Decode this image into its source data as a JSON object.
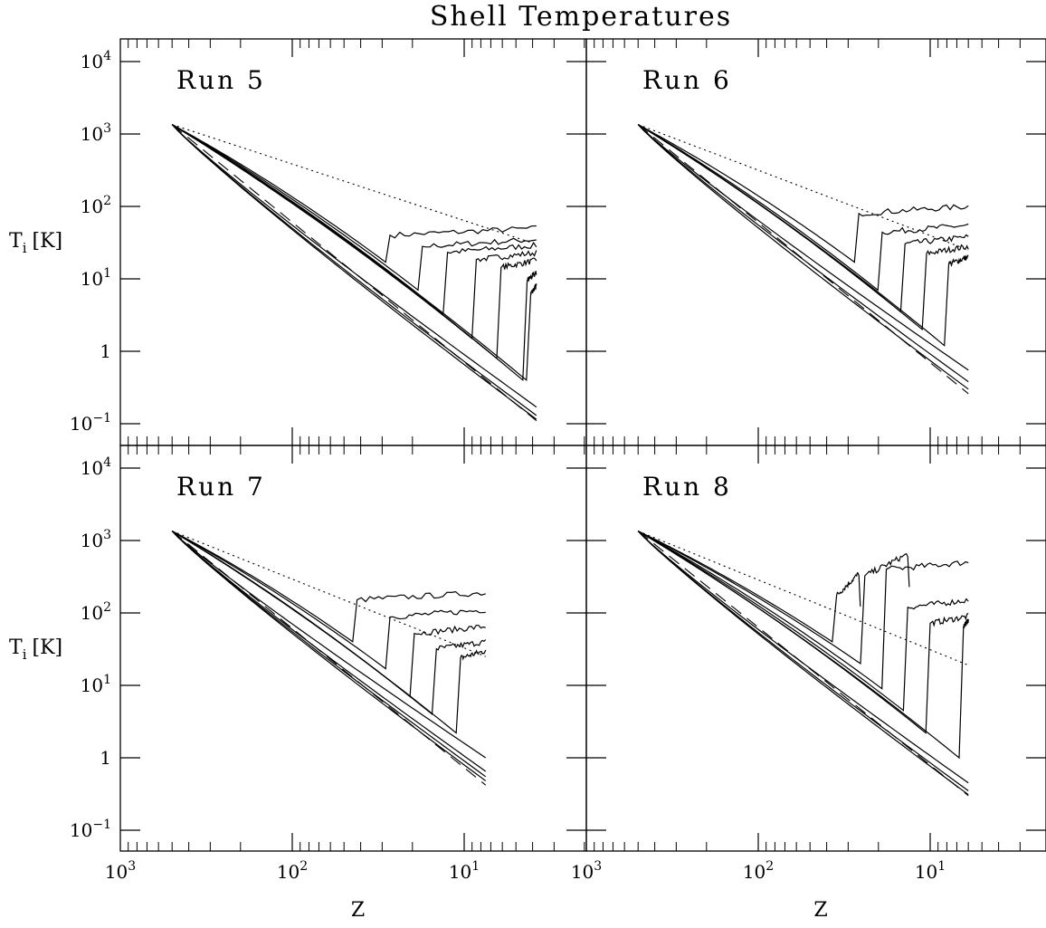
{
  "chart_data": {
    "type": "line",
    "title": "Shell Temperatures",
    "xlabel": "Z",
    "ylabel": "T",
    "ylabel_sub": "i",
    "ylabel_unit": "[K]",
    "x_scale": "log-reversed",
    "y_scale": "log",
    "xlim": [
      1000,
      2.5
    ],
    "ylim": [
      0.05,
      20000
    ],
    "x_ticks": [
      {
        "value": 1000,
        "base": "10",
        "exp": "3"
      },
      {
        "value": 100,
        "base": "10",
        "exp": "2"
      },
      {
        "value": 10,
        "base": "10",
        "exp": "1"
      }
    ],
    "y_ticks": [
      {
        "value": 10000,
        "base": "10",
        "exp": "4"
      },
      {
        "value": 1000,
        "base": "10",
        "exp": "3"
      },
      {
        "value": 100,
        "base": "10",
        "exp": "2"
      },
      {
        "value": 10,
        "base": "10",
        "exp": "1"
      },
      {
        "value": 1,
        "base": "1",
        "exp": ""
      },
      {
        "value": 0.1,
        "base": "10",
        "exp": "−1"
      }
    ],
    "panels": [
      {
        "label": "Run 5",
        "zmin": 3.8,
        "reference_dashed": [
          [
            500,
            1350
          ],
          [
            3.8,
            0.11
          ]
        ],
        "reference_dotted": [
          [
            500,
            1350
          ],
          [
            3.8,
            30
          ]
        ],
        "shells": [
          {
            "drop_z": 27,
            "min_T": 17,
            "end_T": 50
          },
          {
            "drop_z": 17.5,
            "min_T": 7,
            "end_T": 35
          },
          {
            "drop_z": 12.5,
            "min_T": 3.3,
            "end_T": 29
          },
          {
            "drop_z": 8.5,
            "min_T": 1.5,
            "end_T": 23
          },
          {
            "drop_z": 6.1,
            "min_T": 0.8,
            "end_T": 18
          },
          {
            "drop_z": 4.3,
            "min_T": 0.4,
            "end_T": 12
          },
          {
            "drop_z": 4.1,
            "min_T": 0.4,
            "end_T": 8
          },
          {
            "drop_z": null,
            "min_T": null,
            "end_T": 0.17
          },
          {
            "drop_z": null,
            "min_T": null,
            "end_T": 0.13
          },
          {
            "drop_z": null,
            "min_T": null,
            "end_T": 0.115
          }
        ]
      },
      {
        "label": "Run 6",
        "zmin": 6,
        "reference_dashed": [
          [
            500,
            1350
          ],
          [
            6,
            0.26
          ]
        ],
        "reference_dotted": [
          [
            500,
            1350
          ],
          [
            6,
            25
          ]
        ],
        "shells": [
          {
            "drop_z": 26,
            "min_T": 17,
            "end_T": 100
          },
          {
            "drop_z": 19,
            "min_T": 7,
            "end_T": 55
          },
          {
            "drop_z": 14,
            "min_T": 3.5,
            "end_T": 38
          },
          {
            "drop_z": 10.5,
            "min_T": 2,
            "end_T": 28
          },
          {
            "drop_z": 7.8,
            "min_T": 1.2,
            "end_T": 20
          },
          {
            "drop_z": null,
            "min_T": null,
            "end_T": 0.55
          },
          {
            "drop_z": null,
            "min_T": null,
            "end_T": 0.38
          },
          {
            "drop_z": null,
            "min_T": null,
            "end_T": 0.3
          }
        ]
      },
      {
        "label": "Run 7",
        "zmin": 7.5,
        "reference_dashed": [
          [
            500,
            1350
          ],
          [
            7.5,
            0.42
          ]
        ],
        "reference_dotted": [
          [
            500,
            1350
          ],
          [
            7.5,
            25
          ]
        ],
        "shells": [
          {
            "drop_z": 42,
            "min_T": 40,
            "end_T": 190
          },
          {
            "drop_z": 27,
            "min_T": 17,
            "end_T": 110
          },
          {
            "drop_z": 19.5,
            "min_T": 7,
            "end_T": 65
          },
          {
            "drop_z": 14.5,
            "min_T": 4,
            "end_T": 40
          },
          {
            "drop_z": 10.5,
            "min_T": 2.2,
            "end_T": 30
          },
          {
            "drop_z": null,
            "min_T": null,
            "end_T": 1.0
          },
          {
            "drop_z": null,
            "min_T": null,
            "end_T": 0.65
          },
          {
            "drop_z": null,
            "min_T": null,
            "end_T": 0.55
          },
          {
            "drop_z": null,
            "min_T": null,
            "end_T": 0.48
          }
        ]
      },
      {
        "label": "Run 8",
        "zmin": 6,
        "reference_dashed": [
          [
            500,
            1350
          ],
          [
            6,
            0.3
          ]
        ],
        "reference_dotted": [
          [
            500,
            1350
          ],
          [
            6,
            19
          ]
        ],
        "shells": [
          {
            "drop_z": 35,
            "min_T": 40,
            "end_T": 350,
            "peak_z": 26
          },
          {
            "drop_z": 24,
            "min_T": 20,
            "end_T": 650,
            "peak_z": 13.5
          },
          {
            "drop_z": 18,
            "min_T": 9,
            "end_T": 500
          },
          {
            "drop_z": 13.5,
            "min_T": 4.5,
            "end_T": 150
          },
          {
            "drop_z": 10,
            "min_T": 2.2,
            "end_T": 90
          },
          {
            "drop_z": 6.4,
            "min_T": 1.0,
            "end_T": 80
          },
          {
            "drop_z": null,
            "min_T": null,
            "end_T": 0.45
          },
          {
            "drop_z": null,
            "min_T": null,
            "end_T": 0.35
          },
          {
            "drop_z": null,
            "min_T": null,
            "end_T": 0.31
          }
        ]
      }
    ]
  }
}
